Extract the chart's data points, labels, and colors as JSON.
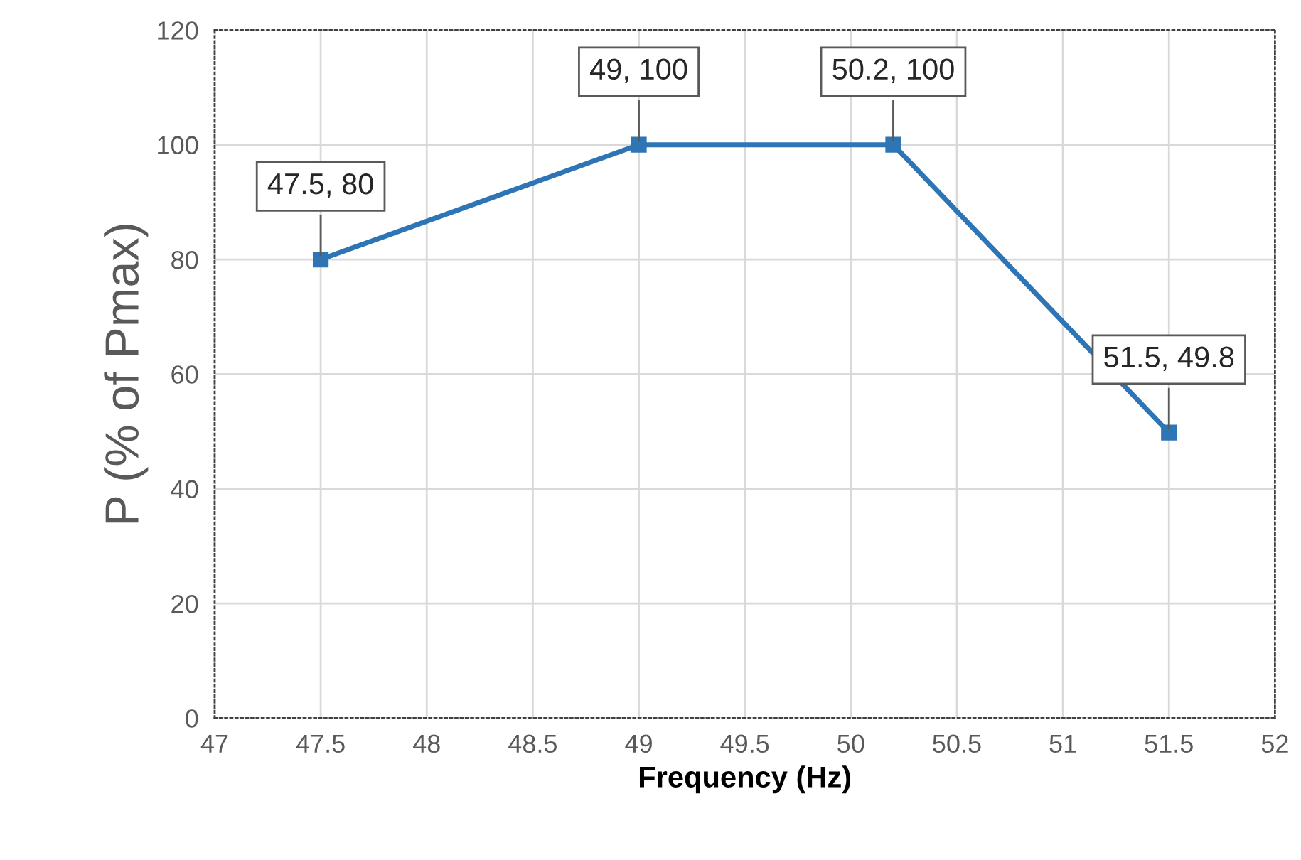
{
  "chart_data": {
    "type": "line",
    "xlabel": "Frequency (Hz)",
    "ylabel": "P (% of Pmax)",
    "x": [
      47.5,
      49,
      50.2,
      51.5
    ],
    "series": [
      {
        "color": "#2e75b6",
        "values": [
          80,
          100,
          100,
          49.8
        ],
        "value_labels": [
          "47.5, 80",
          "49, 100",
          "50.2, 100",
          "51.5, 49.8"
        ]
      }
    ],
    "xlim": [
      47,
      52
    ],
    "xticks": [
      47,
      47.5,
      48,
      48.5,
      49,
      49.5,
      50,
      50.5,
      51,
      51.5,
      52
    ],
    "ylim": [
      0,
      120
    ],
    "yticks": [
      0,
      20,
      40,
      60,
      80,
      100,
      120
    ],
    "grid": true,
    "legend": false,
    "marker": "square",
    "line_style": "solid"
  }
}
